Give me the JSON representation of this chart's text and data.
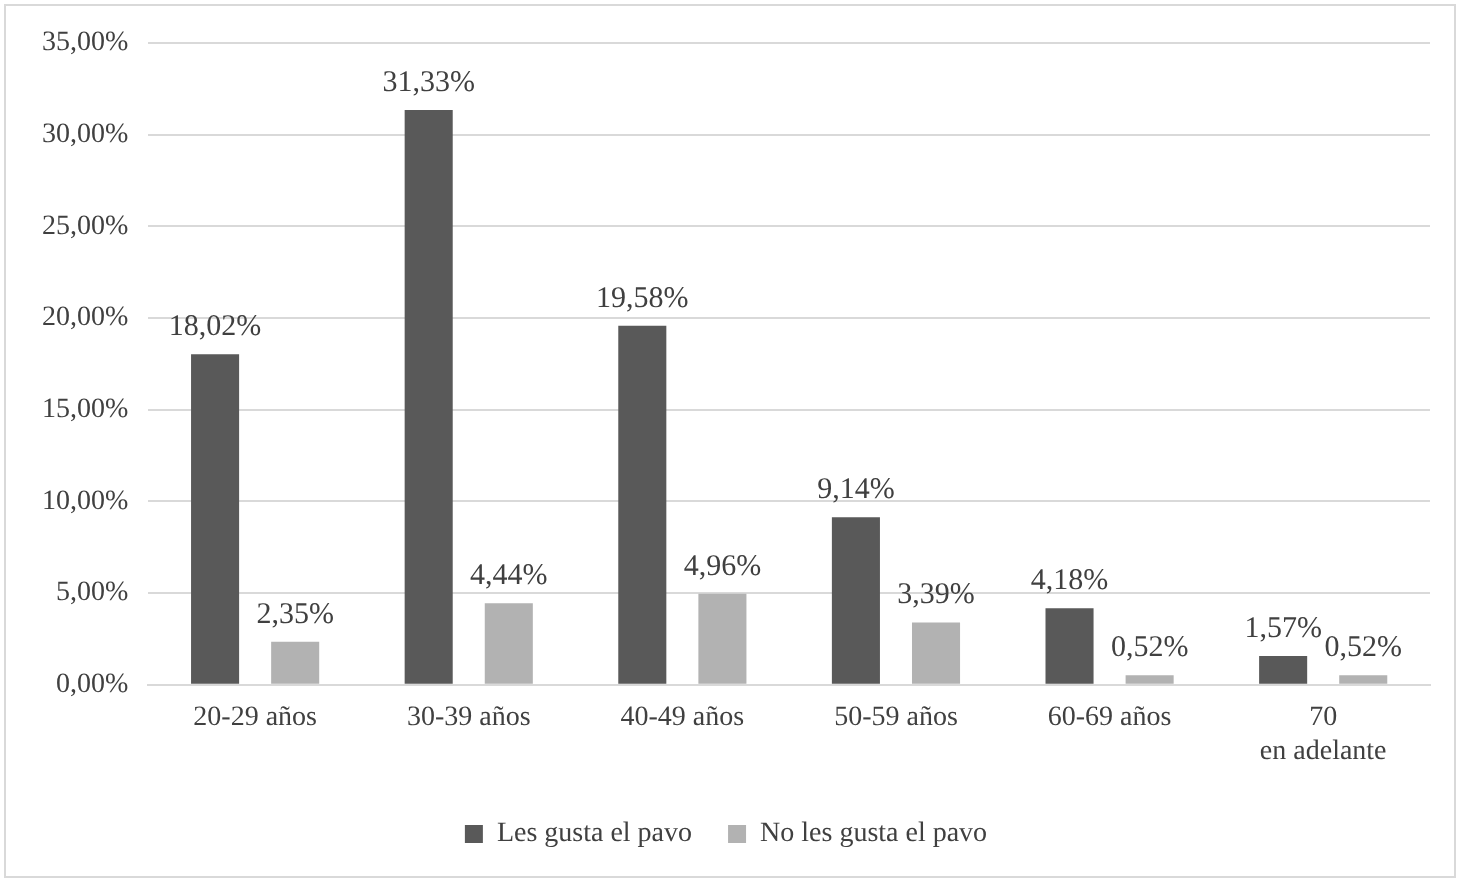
{
  "chart_data": {
    "type": "bar",
    "categories": [
      "20-29 años",
      "30-39 años",
      "40-49 años",
      "50-59 años",
      "60-69 años",
      "70 en adelante"
    ],
    "series": [
      {
        "name": "Les gusta el pavo",
        "color": "#595959",
        "values": [
          18.02,
          31.33,
          19.58,
          9.14,
          4.18,
          1.57
        ],
        "value_labels": [
          "18,02%",
          "31,33%",
          "19,58%",
          "9,14%",
          "4,18%",
          "1,57%"
        ]
      },
      {
        "name": "No les gusta el pavo",
        "color": "#b2b2b2",
        "values": [
          2.35,
          4.44,
          4.96,
          3.39,
          0.52,
          0.52
        ],
        "value_labels": [
          "2,35%",
          "4,44%",
          "4,96%",
          "3,39%",
          "0,52%",
          "0,52%"
        ]
      }
    ],
    "ylim": [
      0,
      35
    ],
    "yticks": [
      {
        "value": 0,
        "label": "0,00%"
      },
      {
        "value": 5,
        "label": "5,00%"
      },
      {
        "value": 10,
        "label": "10,00%"
      },
      {
        "value": 15,
        "label": "15,00%"
      },
      {
        "value": 20,
        "label": "20,00%"
      },
      {
        "value": 25,
        "label": "25,00%"
      },
      {
        "value": 30,
        "label": "30,00%"
      },
      {
        "value": 35,
        "label": "35,00%"
      }
    ],
    "grid": "y",
    "legend": "bottom"
  }
}
